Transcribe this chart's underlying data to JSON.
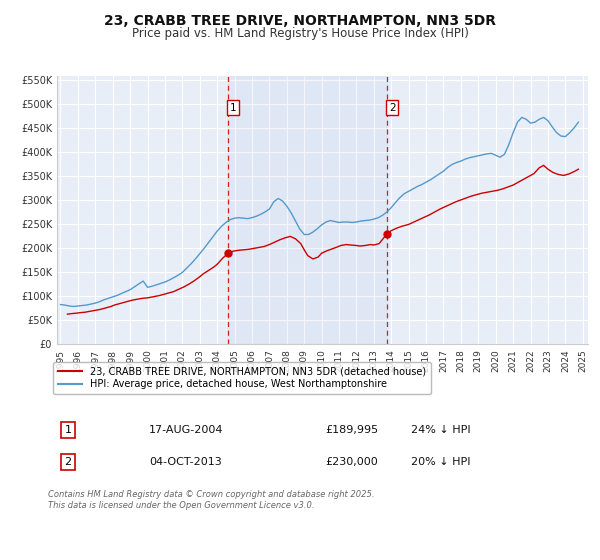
{
  "title": "23, CRABB TREE DRIVE, NORTHAMPTON, NN3 5DR",
  "subtitle": "Price paid vs. HM Land Registry's House Price Index (HPI)",
  "title_fontsize": 10,
  "subtitle_fontsize": 8.5,
  "background_color": "#ffffff",
  "plot_bg_color": "#e8eef8",
  "grid_color": "#ffffff",
  "ylim": [
    0,
    560000
  ],
  "xlim_start": 1994.8,
  "xlim_end": 2025.3,
  "yticks": [
    0,
    50000,
    100000,
    150000,
    200000,
    250000,
    300000,
    350000,
    400000,
    450000,
    500000,
    550000
  ],
  "ytick_labels": [
    "£0",
    "£50K",
    "£100K",
    "£150K",
    "£200K",
    "£250K",
    "£300K",
    "£350K",
    "£400K",
    "£450K",
    "£500K",
    "£550K"
  ],
  "red_line_color": "#cc0000",
  "blue_line_color": "#5599cc",
  "marker_color": "#cc0000",
  "vline_color": "#cc2222",
  "annotation_border": "#cc0000",
  "sale1_x": 2004.63,
  "sale1_y": 189995,
  "sale2_x": 2013.75,
  "sale2_y": 230000,
  "legend_red_label": "23, CRABB TREE DRIVE, NORTHAMPTON, NN3 5DR (detached house)",
  "legend_blue_label": "HPI: Average price, detached house, West Northamptonshire",
  "table_row1": [
    "1",
    "17-AUG-2004",
    "£189,995",
    "24% ↓ HPI"
  ],
  "table_row2": [
    "2",
    "04-OCT-2013",
    "£230,000",
    "20% ↓ HPI"
  ],
  "footer": "Contains HM Land Registry data © Crown copyright and database right 2025.\nThis data is licensed under the Open Government Licence v3.0.",
  "hpi_data": {
    "years": [
      1995.0,
      1995.25,
      1995.5,
      1995.75,
      1996.0,
      1996.25,
      1996.5,
      1996.75,
      1997.0,
      1997.25,
      1997.5,
      1997.75,
      1998.0,
      1998.25,
      1998.5,
      1998.75,
      1999.0,
      1999.25,
      1999.5,
      1999.75,
      2000.0,
      2000.25,
      2000.5,
      2000.75,
      2001.0,
      2001.25,
      2001.5,
      2001.75,
      2002.0,
      2002.25,
      2002.5,
      2002.75,
      2003.0,
      2003.25,
      2003.5,
      2003.75,
      2004.0,
      2004.25,
      2004.5,
      2004.75,
      2005.0,
      2005.25,
      2005.5,
      2005.75,
      2006.0,
      2006.25,
      2006.5,
      2006.75,
      2007.0,
      2007.25,
      2007.5,
      2007.75,
      2008.0,
      2008.25,
      2008.5,
      2008.75,
      2009.0,
      2009.25,
      2009.5,
      2009.75,
      2010.0,
      2010.25,
      2010.5,
      2010.75,
      2011.0,
      2011.25,
      2011.5,
      2011.75,
      2012.0,
      2012.25,
      2012.5,
      2012.75,
      2013.0,
      2013.25,
      2013.5,
      2013.75,
      2014.0,
      2014.25,
      2014.5,
      2014.75,
      2015.0,
      2015.25,
      2015.5,
      2015.75,
      2016.0,
      2016.25,
      2016.5,
      2016.75,
      2017.0,
      2017.25,
      2017.5,
      2017.75,
      2018.0,
      2018.25,
      2018.5,
      2018.75,
      2019.0,
      2019.25,
      2019.5,
      2019.75,
      2020.0,
      2020.25,
      2020.5,
      2020.75,
      2021.0,
      2021.25,
      2021.5,
      2021.75,
      2022.0,
      2022.25,
      2022.5,
      2022.75,
      2023.0,
      2023.25,
      2023.5,
      2023.75,
      2024.0,
      2024.25,
      2024.5,
      2024.75
    ],
    "values": [
      83000,
      82000,
      80000,
      79000,
      80000,
      81000,
      82000,
      84000,
      86000,
      89000,
      93000,
      96000,
      99000,
      102000,
      106000,
      110000,
      114000,
      120000,
      126000,
      132000,
      119000,
      121000,
      124000,
      127000,
      130000,
      134000,
      139000,
      144000,
      150000,
      159000,
      168000,
      178000,
      189000,
      200000,
      212000,
      224000,
      236000,
      246000,
      254000,
      260000,
      263000,
      264000,
      263000,
      262000,
      264000,
      267000,
      271000,
      276000,
      282000,
      297000,
      304000,
      299000,
      288000,
      274000,
      257000,
      240000,
      229000,
      229000,
      234000,
      241000,
      249000,
      255000,
      258000,
      256000,
      254000,
      255000,
      255000,
      254000,
      255000,
      257000,
      258000,
      259000,
      261000,
      264000,
      269000,
      276000,
      285000,
      296000,
      306000,
      314000,
      319000,
      324000,
      329000,
      333000,
      338000,
      343000,
      349000,
      355000,
      361000,
      369000,
      375000,
      379000,
      382000,
      386000,
      389000,
      391000,
      393000,
      395000,
      397000,
      398000,
      394000,
      390000,
      396000,
      416000,
      441000,
      463000,
      473000,
      469000,
      461000,
      463000,
      469000,
      473000,
      466000,
      453000,
      441000,
      434000,
      433000,
      441000,
      451000,
      463000
    ]
  },
  "price_data": {
    "years": [
      1995.4,
      1995.6,
      1995.9,
      1996.1,
      1996.4,
      1996.7,
      1997.0,
      1997.3,
      1997.6,
      1997.9,
      1998.1,
      1998.5,
      1998.8,
      1999.1,
      1999.4,
      1999.7,
      2000.0,
      2000.3,
      2000.7,
      2001.0,
      2001.2,
      2001.5,
      2001.8,
      2002.1,
      2002.4,
      2002.7,
      2003.0,
      2003.2,
      2003.5,
      2003.8,
      2004.0,
      2004.3,
      2004.63,
      2004.9,
      2005.2,
      2005.5,
      2005.8,
      2006.1,
      2006.4,
      2006.7,
      2007.0,
      2007.3,
      2007.6,
      2007.9,
      2008.2,
      2008.5,
      2008.8,
      2009.0,
      2009.2,
      2009.5,
      2009.8,
      2010.0,
      2010.3,
      2010.6,
      2010.9,
      2011.1,
      2011.4,
      2011.7,
      2012.0,
      2012.2,
      2012.5,
      2012.8,
      2013.0,
      2013.3,
      2013.75,
      2014.0,
      2014.3,
      2014.6,
      2015.0,
      2015.3,
      2015.6,
      2015.9,
      2016.2,
      2016.5,
      2016.8,
      2017.1,
      2017.4,
      2017.7,
      2018.0,
      2018.3,
      2018.6,
      2018.9,
      2019.2,
      2019.5,
      2019.8,
      2020.1,
      2020.4,
      2020.7,
      2021.0,
      2021.3,
      2021.6,
      2021.9,
      2022.2,
      2022.5,
      2022.75,
      2023.0,
      2023.3,
      2023.6,
      2023.9,
      2024.2,
      2024.5,
      2024.75
    ],
    "values": [
      63000,
      64000,
      65000,
      66000,
      67000,
      69000,
      71000,
      73000,
      76000,
      79000,
      82000,
      86000,
      89000,
      92000,
      94000,
      96000,
      97000,
      99000,
      102000,
      105000,
      107000,
      110000,
      115000,
      120000,
      126000,
      133000,
      141000,
      147000,
      154000,
      161000,
      167000,
      179000,
      189995,
      194000,
      196000,
      197000,
      198000,
      200000,
      202000,
      204000,
      208000,
      213000,
      218000,
      222000,
      225000,
      220000,
      210000,
      197000,
      185000,
      178000,
      182000,
      190000,
      195000,
      199000,
      203000,
      206000,
      208000,
      207000,
      206000,
      205000,
      206000,
      208000,
      207000,
      210000,
      230000,
      237000,
      242000,
      246000,
      250000,
      255000,
      260000,
      265000,
      270000,
      276000,
      282000,
      287000,
      292000,
      297000,
      301000,
      305000,
      309000,
      312000,
      315000,
      317000,
      319000,
      321000,
      324000,
      328000,
      332000,
      338000,
      344000,
      350000,
      356000,
      368000,
      373000,
      365000,
      358000,
      354000,
      352000,
      355000,
      360000,
      365000
    ]
  }
}
